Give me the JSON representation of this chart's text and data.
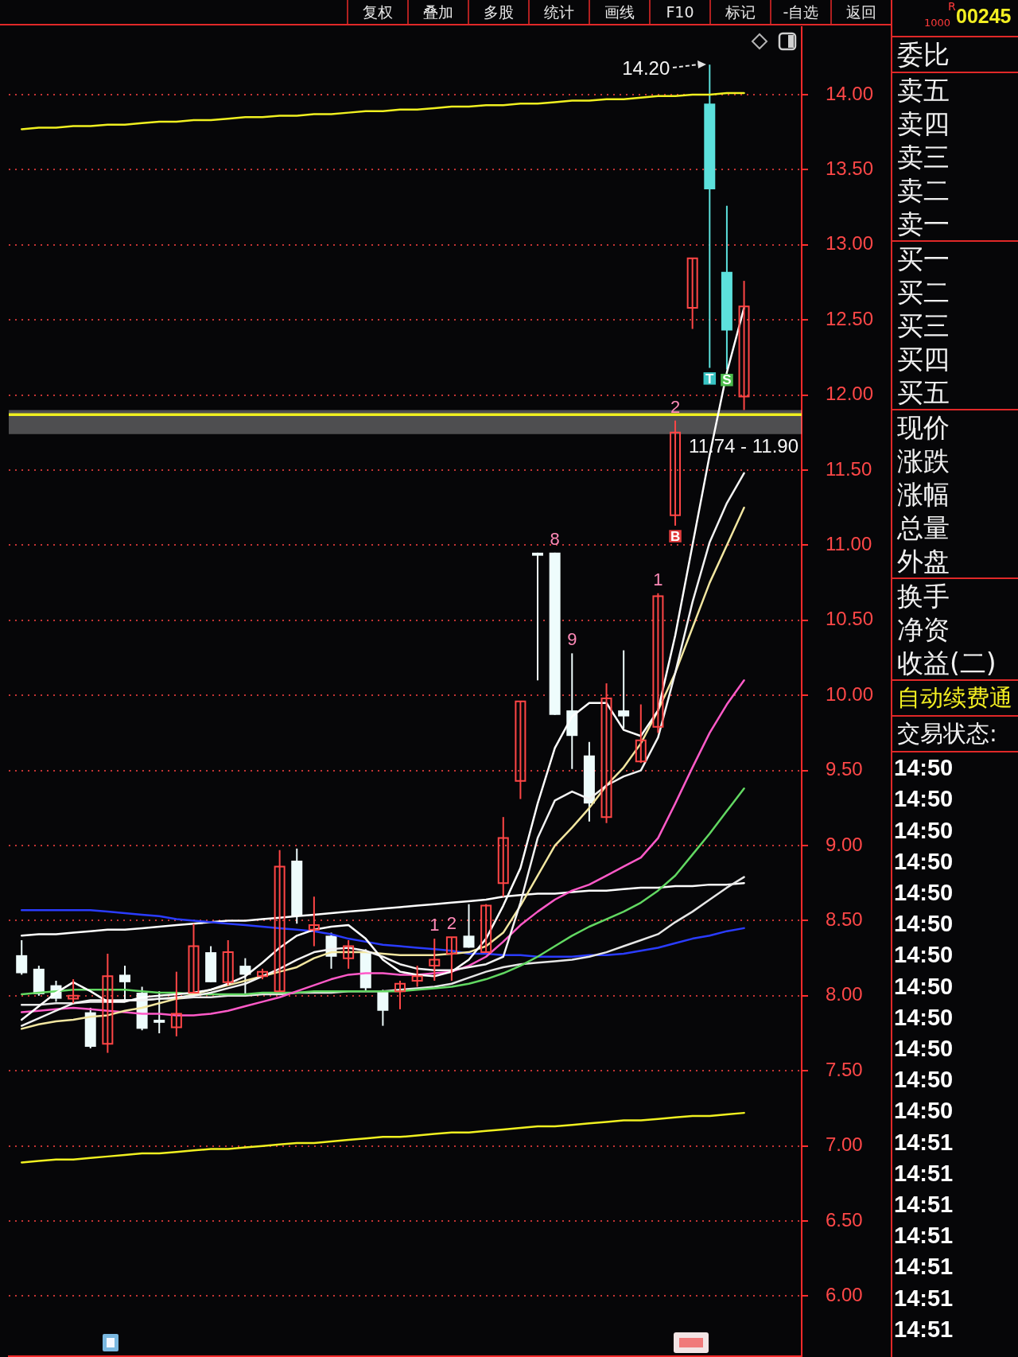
{
  "chart_data": [
    {
      "type": "other",
      "annotations": [
        "复权",
        "叠加",
        "多股",
        "统计",
        "画线",
        "F10",
        "标记",
        "-自选",
        "返回"
      ]
    },
    {
      "type": "candlestick",
      "categories": [
        null,
        null,
        null,
        null,
        null,
        null,
        null,
        null,
        null,
        null,
        null,
        null,
        null,
        null,
        null,
        null,
        null,
        null,
        null,
        null,
        null,
        null,
        null,
        null,
        null,
        null,
        null,
        null,
        null,
        null,
        null,
        null,
        null,
        null,
        null,
        null,
        null,
        null,
        null,
        null,
        null,
        null,
        null
      ],
      "ohlc": [
        [
          8.27,
          8.37,
          8.14,
          8.15
        ],
        [
          8.18,
          8.2,
          8.0,
          8.01
        ],
        [
          8.07,
          8.1,
          7.96,
          7.98
        ],
        [
          7.98,
          8.11,
          7.95,
          8.0
        ],
        [
          7.89,
          7.92,
          7.65,
          7.66
        ],
        [
          7.68,
          8.28,
          7.62,
          8.13
        ],
        [
          8.14,
          8.2,
          7.97,
          8.09
        ],
        [
          8.02,
          8.06,
          7.77,
          7.78
        ],
        [
          7.84,
          8.03,
          7.75,
          7.82
        ],
        [
          7.79,
          8.16,
          7.73,
          7.88
        ],
        [
          8.02,
          8.48,
          8.02,
          8.33
        ],
        [
          8.29,
          8.33,
          8.09,
          8.09
        ],
        [
          8.09,
          8.37,
          8.07,
          8.29
        ],
        [
          8.2,
          8.25,
          8.01,
          8.14
        ],
        [
          8.13,
          8.18,
          8.11,
          8.16
        ],
        [
          8.03,
          8.97,
          8.03,
          8.86
        ],
        [
          8.9,
          8.98,
          8.48,
          8.53
        ],
        [
          8.44,
          8.66,
          8.33,
          8.47
        ],
        [
          8.4,
          8.42,
          8.18,
          8.26
        ],
        [
          8.25,
          8.37,
          8.18,
          8.33
        ],
        [
          8.29,
          8.31,
          8.03,
          8.05
        ],
        [
          8.03,
          8.04,
          7.8,
          7.9
        ],
        [
          8.03,
          8.1,
          7.91,
          8.08
        ],
        [
          8.1,
          8.2,
          8.06,
          8.13
        ],
        [
          8.2,
          8.38,
          8.1,
          8.24
        ],
        [
          8.28,
          8.39,
          8.1,
          8.39
        ],
        [
          8.4,
          8.61,
          8.32,
          8.32
        ],
        [
          8.29,
          8.61,
          8.29,
          8.6
        ],
        [
          8.75,
          9.19,
          8.66,
          9.05
        ],
        [
          9.43,
          9.96,
          9.31,
          9.96
        ],
        [
          10.95,
          10.95,
          10.1,
          10.93
        ],
        [
          10.95,
          10.95,
          9.87,
          9.87
        ],
        [
          9.9,
          10.28,
          9.51,
          9.73
        ],
        [
          9.6,
          9.69,
          9.16,
          9.28
        ],
        [
          9.19,
          10.08,
          9.15,
          9.98
        ],
        [
          9.9,
          10.3,
          9.78,
          9.86
        ],
        [
          9.56,
          9.94,
          9.55,
          9.7
        ],
        [
          9.79,
          10.68,
          9.75,
          10.66
        ],
        [
          11.2,
          11.83,
          11.13,
          11.75
        ],
        [
          12.58,
          12.91,
          12.44,
          12.91
        ],
        [
          13.94,
          14.2,
          12.18,
          13.37
        ],
        [
          12.82,
          13.26,
          12.17,
          12.43
        ],
        [
          11.99,
          12.76,
          11.9,
          12.59
        ]
      ],
      "colors": [
        "#eefcfc",
        "#eefcfc",
        "#eefcfc",
        "#ff4646",
        "#eefcfc",
        "#ff4646",
        "#eefcfc",
        "#eefcfc",
        "#eefcfc",
        "#ff4646",
        "#ff4646",
        "#eefcfc",
        "#ff4646",
        "#eefcfc",
        "#ff4646",
        "#ff4646",
        "#eefcfc",
        "#ff4646",
        "#eefcfc",
        "#ff4646",
        "#eefcfc",
        "#eefcfc",
        "#ff4646",
        "#ff4646",
        "#ff4646",
        "#ff4646",
        "#eefcfc",
        "#ff4646",
        "#ff4646",
        "#ff4646",
        "#eefcfc",
        "#eefcfc",
        "#eefcfc",
        "#eefcfc",
        "#ff4646",
        "#eefcfc",
        "#ff4646",
        "#ff4646",
        "#ff4646",
        "#ff4646",
        "#5ce0dc",
        "#5ce0dc",
        "#ff4646"
      ],
      "value_labels": [
        null,
        null,
        null,
        null,
        null,
        null,
        null,
        null,
        null,
        null,
        null,
        null,
        null,
        null,
        null,
        null,
        null,
        null,
        null,
        null,
        null,
        null,
        null,
        null,
        "1",
        "2",
        null,
        null,
        null,
        null,
        null,
        "8",
        "9",
        null,
        null,
        null,
        null,
        "1",
        "2",
        null,
        null,
        null,
        null
      ],
      "series": [
        {
          "type": "line",
          "color": "#ffffff",
          "values": [
            7.84,
            7.93,
            8.02,
            8.09,
            8.03,
            7.96,
            7.96,
            7.99,
            8.0,
            8.01,
            8.02,
            8.04,
            8.08,
            8.13,
            8.22,
            8.32,
            8.4,
            8.44,
            8.46,
            8.47,
            8.38,
            8.24,
            8.16,
            8.14,
            8.13,
            8.16,
            8.24,
            8.38,
            8.6,
            8.85,
            9.28,
            9.65,
            9.86,
            9.95,
            9.95,
            9.77,
            9.73,
            9.9,
            10.4,
            11.0,
            11.6,
            12.15,
            12.58
          ]
        },
        {
          "type": "line",
          "color": "#f2f2f2",
          "values": [
            7.8,
            7.85,
            7.9,
            7.95,
            7.97,
            7.97,
            7.97,
            7.97,
            7.98,
            7.99,
            8.0,
            8.02,
            8.05,
            8.08,
            8.13,
            8.18,
            8.24,
            8.29,
            8.31,
            8.32,
            8.3,
            8.26,
            8.21,
            8.18,
            8.17,
            8.17,
            8.19,
            8.21,
            8.26,
            8.62,
            9.05,
            9.3,
            9.36,
            9.31,
            9.4,
            9.46,
            9.5,
            9.72,
            10.15,
            10.62,
            11.02,
            11.28,
            11.48
          ]
        },
        {
          "type": "line",
          "color": "#f2e6a0",
          "values": [
            7.78,
            7.81,
            7.83,
            7.84,
            7.86,
            7.87,
            7.9,
            7.92,
            7.95,
            7.98,
            8.01,
            8.04,
            8.07,
            8.1,
            8.13,
            8.16,
            8.19,
            8.25,
            8.29,
            8.29,
            8.29,
            8.28,
            8.27,
            8.27,
            8.27,
            8.28,
            8.29,
            8.33,
            8.42,
            8.6,
            8.8,
            9.0,
            9.12,
            9.25,
            9.4,
            9.52,
            9.68,
            9.9,
            10.15,
            10.45,
            10.75,
            11.0,
            11.25
          ]
        },
        {
          "type": "line",
          "color": "#ff5ac8",
          "values": [
            7.89,
            7.9,
            7.91,
            7.92,
            7.91,
            7.9,
            7.89,
            7.88,
            7.88,
            7.87,
            7.87,
            7.88,
            7.9,
            7.93,
            7.96,
            7.99,
            8.03,
            8.07,
            8.11,
            8.14,
            8.15,
            8.15,
            8.14,
            8.14,
            8.15,
            8.16,
            8.2,
            8.26,
            8.36,
            8.47,
            8.56,
            8.64,
            8.7,
            8.74,
            8.8,
            8.86,
            8.92,
            9.05,
            9.28,
            9.52,
            9.75,
            9.94,
            10.1
          ]
        },
        {
          "type": "line",
          "color": "#62d862",
          "values": [
            8.01,
            8.02,
            8.03,
            8.04,
            8.04,
            8.04,
            8.04,
            8.03,
            8.02,
            8.02,
            8.01,
            8.01,
            8.01,
            8.01,
            8.02,
            8.02,
            8.02,
            8.03,
            8.03,
            8.03,
            8.03,
            8.03,
            8.03,
            8.04,
            8.05,
            8.06,
            8.08,
            8.11,
            8.15,
            8.2,
            8.26,
            8.33,
            8.4,
            8.46,
            8.51,
            8.56,
            8.62,
            8.7,
            8.8,
            8.94,
            9.08,
            9.23,
            9.38
          ]
        },
        {
          "type": "line",
          "color": "#e6e6e6",
          "values": [
            7.94,
            7.94,
            7.95,
            7.95,
            7.96,
            7.96,
            7.97,
            7.97,
            7.98,
            7.98,
            7.99,
            7.99,
            8.0,
            8.0,
            8.01,
            8.01,
            8.02,
            8.02,
            8.02,
            8.03,
            8.03,
            8.03,
            8.04,
            8.05,
            8.06,
            8.08,
            8.12,
            8.16,
            8.19,
            8.21,
            8.22,
            8.23,
            8.24,
            8.26,
            8.29,
            8.33,
            8.37,
            8.41,
            8.49,
            8.56,
            8.64,
            8.72,
            8.79
          ]
        },
        {
          "type": "line",
          "color": "#2a3cff",
          "values": [
            8.57,
            8.57,
            8.57,
            8.57,
            8.57,
            8.56,
            8.55,
            8.54,
            8.53,
            8.51,
            8.5,
            8.49,
            8.48,
            8.47,
            8.46,
            8.45,
            8.44,
            8.43,
            8.41,
            8.38,
            8.36,
            8.34,
            8.33,
            8.32,
            8.31,
            8.3,
            8.28,
            8.28,
            8.27,
            8.27,
            8.26,
            8.26,
            8.26,
            8.27,
            8.27,
            8.28,
            8.3,
            8.32,
            8.35,
            8.38,
            8.4,
            8.43,
            8.45
          ]
        },
        {
          "type": "line",
          "color": "#ffffff",
          "values": [
            8.4,
            8.41,
            8.41,
            8.42,
            8.43,
            8.44,
            8.44,
            8.45,
            8.46,
            8.47,
            8.48,
            8.49,
            8.5,
            8.5,
            8.51,
            8.52,
            8.53,
            8.54,
            8.55,
            8.56,
            8.57,
            8.58,
            8.59,
            8.6,
            8.61,
            8.62,
            8.63,
            8.64,
            8.66,
            8.67,
            8.68,
            8.68,
            8.69,
            8.7,
            8.7,
            8.71,
            8.72,
            8.72,
            8.73,
            8.73,
            8.74,
            8.74,
            8.75
          ]
        },
        {
          "type": "line",
          "color": "#f0f020",
          "values": [
            13.77,
            13.78,
            13.78,
            13.79,
            13.79,
            13.8,
            13.8,
            13.81,
            13.82,
            13.82,
            13.83,
            13.83,
            13.84,
            13.85,
            13.85,
            13.86,
            13.86,
            13.87,
            13.87,
            13.88,
            13.89,
            13.89,
            13.9,
            13.9,
            13.91,
            13.92,
            13.92,
            13.93,
            13.93,
            13.94,
            13.94,
            13.95,
            13.96,
            13.96,
            13.97,
            13.97,
            13.98,
            13.99,
            13.99,
            14.0,
            14.0,
            14.01,
            14.01
          ]
        },
        {
          "type": "line",
          "color": "#f0f020",
          "values": [
            6.89,
            6.9,
            6.91,
            6.91,
            6.92,
            6.93,
            6.94,
            6.95,
            6.95,
            6.96,
            6.97,
            6.98,
            6.98,
            6.99,
            7.0,
            7.01,
            7.02,
            7.02,
            7.03,
            7.04,
            7.05,
            7.06,
            7.06,
            7.07,
            7.08,
            7.09,
            7.09,
            7.1,
            7.11,
            7.12,
            7.13,
            7.13,
            7.14,
            7.15,
            7.16,
            7.17,
            7.17,
            7.18,
            7.19,
            7.2,
            7.2,
            7.21,
            7.22
          ]
        },
        {
          "type": "scatter",
          "marker": "square",
          "color": "#e23c3c",
          "values": [
            null,
            null,
            null,
            null,
            null,
            null,
            null,
            null,
            null,
            null,
            null,
            null,
            null,
            null,
            null,
            null,
            null,
            null,
            null,
            null,
            null,
            null,
            null,
            null,
            null,
            null,
            null,
            null,
            null,
            null,
            null,
            null,
            null,
            null,
            null,
            null,
            null,
            null,
            11.06,
            null,
            12.11,
            12.1,
            null
          ],
          "colors": [
            null,
            null,
            null,
            null,
            null,
            null,
            null,
            null,
            null,
            null,
            null,
            null,
            null,
            null,
            null,
            null,
            null,
            null,
            null,
            null,
            null,
            null,
            null,
            null,
            null,
            null,
            null,
            null,
            null,
            null,
            null,
            null,
            null,
            null,
            null,
            null,
            null,
            null,
            "#e23c3c",
            null,
            "#38c4c4",
            "#4cbc4c",
            null
          ],
          "value_labels": [
            null,
            null,
            null,
            null,
            null,
            null,
            null,
            null,
            null,
            null,
            null,
            null,
            null,
            null,
            null,
            null,
            null,
            null,
            null,
            null,
            null,
            null,
            null,
            null,
            null,
            null,
            null,
            null,
            null,
            null,
            null,
            null,
            null,
            null,
            null,
            null,
            null,
            null,
            "B",
            null,
            "T",
            "S",
            null
          ]
        }
      ],
      "ylim": [
        5.6,
        14.45
      ],
      "yticks": [
        {
          "value": 6,
          "label": "6.00"
        },
        {
          "value": 6.5,
          "label": "6.50"
        },
        {
          "value": 7,
          "label": "7.00"
        },
        {
          "value": 7.5,
          "label": "7.50"
        },
        {
          "value": 8,
          "label": "8.00"
        },
        {
          "value": 8.5,
          "label": "8.50"
        },
        {
          "value": 9,
          "label": "9.00"
        },
        {
          "value": 9.5,
          "label": "9.50"
        },
        {
          "value": 10,
          "label": "10.00"
        },
        {
          "value": 10.5,
          "label": "10.50"
        },
        {
          "value": 11,
          "label": "11.00"
        },
        {
          "value": 11.5,
          "label": "11.50"
        },
        {
          "value": 12,
          "label": "12.00"
        },
        {
          "value": 12.5,
          "label": "12.50"
        },
        {
          "value": 13,
          "label": "13.00"
        },
        {
          "value": 13.5,
          "label": "13.50"
        },
        {
          "value": 14,
          "label": "14.00"
        }
      ],
      "grid": "y",
      "legend": false,
      "tick_labels": "y",
      "annotations": [
        "14.20"
      ],
      "bands": [
        {
          "axis": "y",
          "from": 11.74,
          "to": 11.9,
          "label": "11.74 - 11.90",
          "color": "#d8d8d8"
        }
      ],
      "ref_lines": [
        {
          "axis": "y",
          "value": 11.87,
          "color": "#f0f020"
        }
      ]
    },
    {
      "type": "other",
      "annotations": [
        "R",
        "1000",
        "00245",
        "委比",
        "卖五",
        "卖四",
        "卖三",
        "卖二",
        "卖一",
        "买一",
        "买二",
        "买三",
        "买四",
        "买五",
        "现价",
        "涨跌",
        "涨幅",
        "总量",
        "外盘",
        "换手",
        "净资",
        "收益(二)",
        "自动续费通",
        "交易状态:",
        "14:50",
        "14:50",
        "14:50",
        "14:50",
        "14:50",
        "14:50",
        "14:50",
        "14:50",
        "14:50",
        "14:50",
        "14:50",
        "14:50",
        "14:51",
        "14:51",
        "14:51",
        "14:51",
        "14:51",
        "14:51",
        "14:51"
      ]
    }
  ]
}
